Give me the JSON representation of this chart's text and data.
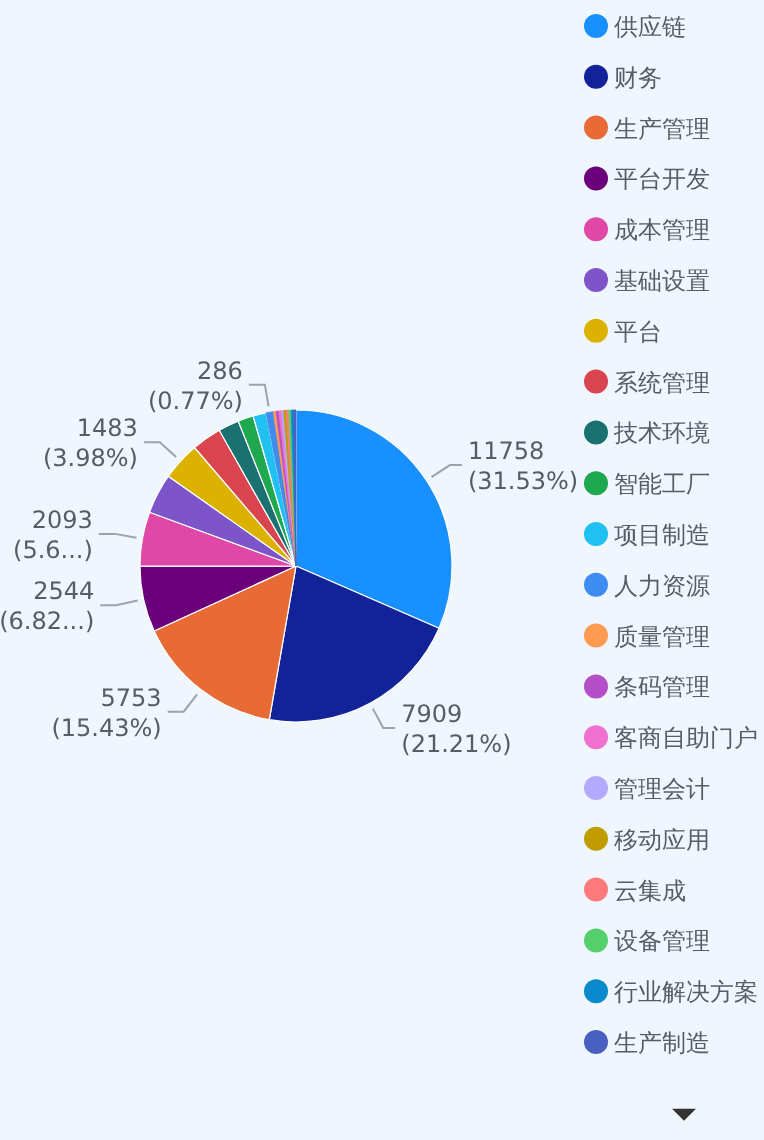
{
  "chart_data": {
    "type": "pie",
    "categories": [
      "供应链",
      "财务",
      "生产管理",
      "平台开发",
      "成本管理",
      "基础设置",
      "平台",
      "系统管理",
      "技术环境",
      "智能工厂",
      "项目制造",
      "人力资源",
      "质量管理",
      "条码管理",
      "客商自助门户",
      "管理会计",
      "移动应用",
      "云集成",
      "设备管理",
      "行业解决方案",
      "生产制造"
    ],
    "values": [
      11758,
      7909,
      5753,
      2544,
      2093,
      1550,
      1483,
      1150,
      800,
      600,
      500,
      286,
      110,
      100,
      95,
      95,
      95,
      95,
      95,
      95,
      86
    ],
    "colors": [
      "#1890ff",
      "#12239a",
      "#e86a35",
      "#6b007b",
      "#e048a8",
      "#7e55c8",
      "#dcb200",
      "#d9444f",
      "#1b7070",
      "#1ea84f",
      "#20c0f0",
      "#3e8cf0",
      "#ff9a50",
      "#b44fc8",
      "#f070d0",
      "#b4a8ff",
      "#c09c00",
      "#ff7a7a",
      "#55d06a",
      "#0a8acc",
      "#4a60c0"
    ],
    "value_labels": [
      "11758 (31.53%)",
      "7909 (21.21%)",
      "5753 (15.43%)",
      "2544 (6.82...)",
      "2093 (5.6...)",
      null,
      "1483 (3.98%)",
      null,
      null,
      null,
      null,
      "286 (0.77%)",
      null,
      null,
      null,
      null,
      null,
      null,
      null,
      null,
      null
    ],
    "legend": "right"
  }
}
